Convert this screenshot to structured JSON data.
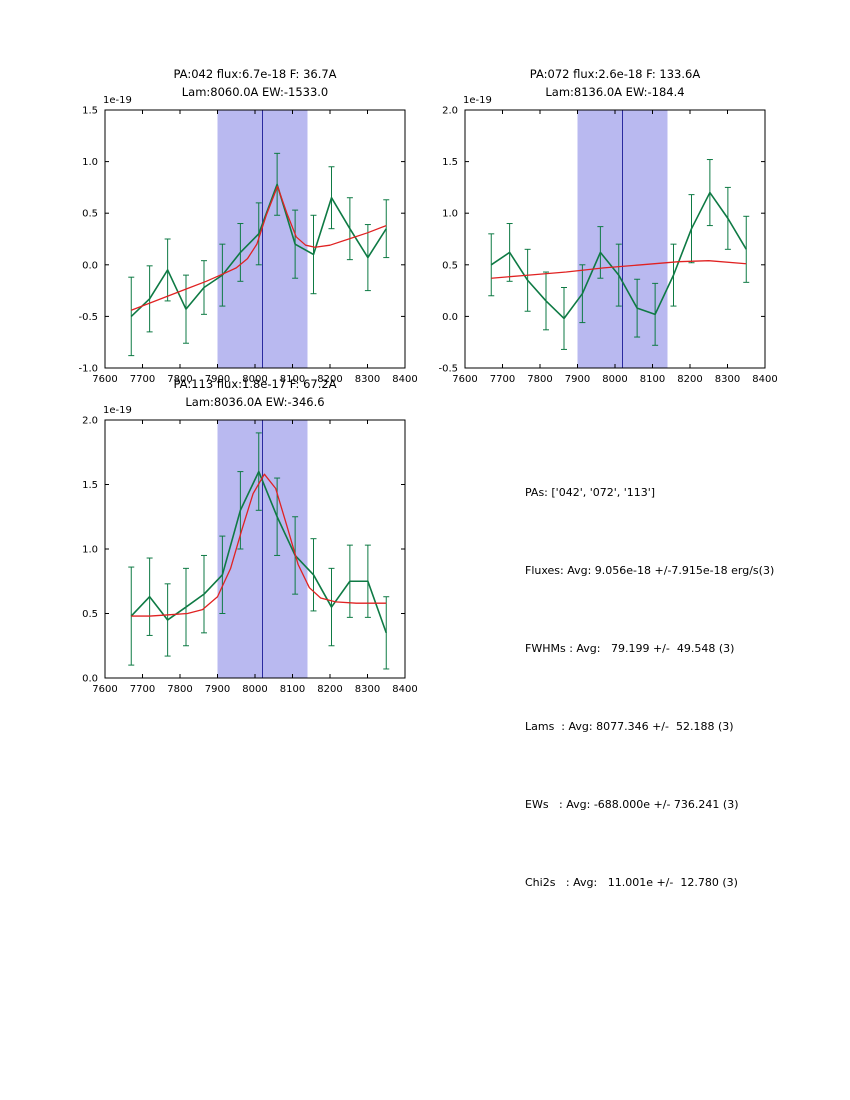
{
  "colors": {
    "data": "#0e7a44",
    "fit": "#e02222",
    "band": "#b9b9f0",
    "vline": "#2a2aa0",
    "axis": "#000000"
  },
  "summary": {
    "lines": [
      "PAs: ['042', '072', '113']",
      "Fluxes: Avg: 9.056e-18 +/-7.915e-18 erg/s(3)",
      "FWHMs : Avg:   79.199 +/-  49.548 (3)",
      "Lams  : Avg: 8077.346 +/-  52.188 (3)",
      "EWs   : Avg: -688.000e +/- 736.241 (3)",
      "Chi2s   : Avg:   11.001e +/-  12.780 (3)"
    ]
  },
  "chart_data": [
    {
      "type": "line",
      "title_line1": "PA:042 flux:6.7e-18 F: 36.7A",
      "title_line2": "Lam:8060.0A EW:-1533.0",
      "offset_label": "1e-19",
      "xlim": [
        7600,
        8400
      ],
      "ylim": [
        -1.0,
        1.5
      ],
      "xticks": [
        "7600",
        "7700",
        "7800",
        "7900",
        "8000",
        "8100",
        "8200",
        "8300",
        "8400"
      ],
      "yticks": [
        "-1.0",
        "-0.5",
        "0.0",
        "0.5",
        "1.0",
        "1.5"
      ],
      "band": [
        7900,
        8140
      ],
      "vline": 8020,
      "series": [
        {
          "name": "spectrum-data",
          "color_key": "data",
          "x": [
            7670,
            7719,
            7767,
            7816,
            7864,
            7913,
            7961,
            8010,
            8059,
            8107,
            8156,
            8204,
            8253,
            8301,
            8350
          ],
          "y": [
            -0.5,
            -0.33,
            -0.05,
            -0.43,
            -0.22,
            -0.1,
            0.12,
            0.3,
            0.78,
            0.2,
            0.1,
            0.65,
            0.35,
            0.07,
            0.35
          ],
          "yerr": [
            0.38,
            0.32,
            0.3,
            0.33,
            0.26,
            0.3,
            0.28,
            0.3,
            0.3,
            0.33,
            0.38,
            0.3,
            0.3,
            0.32,
            0.28
          ]
        },
        {
          "name": "gaussian-fit",
          "color_key": "fit",
          "x": [
            7670,
            7720,
            7770,
            7820,
            7870,
            7920,
            7950,
            7980,
            8005,
            8030,
            8060,
            8085,
            8110,
            8135,
            8160,
            8200,
            8250,
            8300,
            8350
          ],
          "y": [
            -0.44,
            -0.37,
            -0.3,
            -0.23,
            -0.16,
            -0.08,
            -0.03,
            0.06,
            0.2,
            0.48,
            0.76,
            0.5,
            0.27,
            0.19,
            0.17,
            0.19,
            0.25,
            0.31,
            0.38
          ]
        }
      ]
    },
    {
      "type": "line",
      "title_line1": "PA:072 flux:2.6e-18 F: 133.6A",
      "title_line2": "Lam:8136.0A EW:-184.4",
      "offset_label": "1e-19",
      "xlim": [
        7600,
        8400
      ],
      "ylim": [
        -0.5,
        2.0
      ],
      "xticks": [
        "7600",
        "7700",
        "7800",
        "7900",
        "8000",
        "8100",
        "8200",
        "8300",
        "8400"
      ],
      "yticks": [
        "-0.5",
        "0.0",
        "0.5",
        "1.0",
        "1.5",
        "2.0"
      ],
      "band": [
        7900,
        8140
      ],
      "vline": 8020,
      "series": [
        {
          "name": "spectrum-data",
          "color_key": "data",
          "x": [
            7670,
            7719,
            7767,
            7816,
            7864,
            7913,
            7961,
            8010,
            8059,
            8107,
            8156,
            8204,
            8253,
            8301,
            8350
          ],
          "y": [
            0.5,
            0.62,
            0.35,
            0.15,
            -0.02,
            0.22,
            0.62,
            0.4,
            0.08,
            0.02,
            0.4,
            0.85,
            1.2,
            0.95,
            0.65
          ],
          "yerr": [
            0.3,
            0.28,
            0.3,
            0.28,
            0.3,
            0.28,
            0.25,
            0.3,
            0.28,
            0.3,
            0.3,
            0.33,
            0.32,
            0.3,
            0.32
          ]
        },
        {
          "name": "gaussian-fit",
          "color_key": "fit",
          "x": [
            7670,
            7770,
            7870,
            7970,
            8070,
            8170,
            8250,
            8350
          ],
          "y": [
            0.37,
            0.4,
            0.43,
            0.47,
            0.5,
            0.53,
            0.54,
            0.51
          ]
        }
      ]
    },
    {
      "type": "line",
      "title_line1": "PA:113 flux:1.8e-17 F: 67.2A",
      "title_line2": "Lam:8036.0A EW:-346.6",
      "offset_label": "1e-19",
      "xlim": [
        7600,
        8400
      ],
      "ylim": [
        0.0,
        2.0
      ],
      "xticks": [
        "7600",
        "7700",
        "7800",
        "7900",
        "8000",
        "8100",
        "8200",
        "8300",
        "8400"
      ],
      "yticks": [
        "0.0",
        "0.5",
        "1.0",
        "1.5",
        "2.0"
      ],
      "band": [
        7900,
        8140
      ],
      "vline": 8020,
      "series": [
        {
          "name": "spectrum-data",
          "color_key": "data",
          "x": [
            7670,
            7719,
            7767,
            7816,
            7864,
            7913,
            7961,
            8010,
            8059,
            8107,
            8156,
            8204,
            8253,
            8301,
            8350
          ],
          "y": [
            0.48,
            0.63,
            0.45,
            0.55,
            0.65,
            0.8,
            1.3,
            1.6,
            1.25,
            0.95,
            0.8,
            0.55,
            0.75,
            0.75,
            0.35
          ],
          "yerr": [
            0.38,
            0.3,
            0.28,
            0.3,
            0.3,
            0.3,
            0.3,
            0.3,
            0.3,
            0.3,
            0.28,
            0.3,
            0.28,
            0.28,
            0.28
          ]
        },
        {
          "name": "gaussian-fit",
          "color_key": "fit",
          "x": [
            7670,
            7720,
            7770,
            7820,
            7860,
            7900,
            7935,
            7965,
            7995,
            8025,
            8055,
            8085,
            8115,
            8145,
            8175,
            8215,
            8270,
            8350
          ],
          "y": [
            0.48,
            0.48,
            0.49,
            0.5,
            0.53,
            0.63,
            0.85,
            1.15,
            1.43,
            1.58,
            1.47,
            1.18,
            0.88,
            0.7,
            0.62,
            0.59,
            0.58,
            0.58
          ]
        }
      ]
    }
  ]
}
